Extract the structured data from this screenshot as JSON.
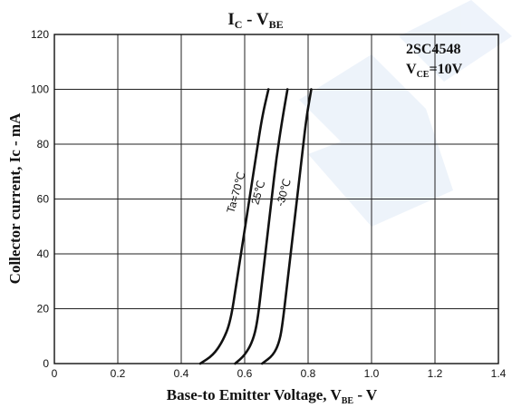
{
  "chart_data": {
    "type": "line",
    "title": {
      "main": "I",
      "main_sub": "C",
      "sep": " - V",
      "sep_sub": "BE"
    },
    "xlabel": {
      "before": "Base-to  Emitter Voltage, V",
      "sub": "BE",
      "after": " - V"
    },
    "ylabel": "Collector current, Ic - mA",
    "xlim": [
      0,
      1.4
    ],
    "ylim": [
      0,
      120
    ],
    "xticks": [
      "0",
      "0.2",
      "0.4",
      "0.6",
      "0.8",
      "1.0",
      "1.2",
      "1.4"
    ],
    "yticks": [
      "0",
      "20",
      "40",
      "60",
      "80",
      "100",
      "120"
    ],
    "grid": true,
    "annotation": {
      "part": "2SC4548",
      "cond_pre": "V",
      "cond_sub": "CE",
      "cond_post": "=10V"
    },
    "series": [
      {
        "name": "Ta=70℃",
        "points": [
          [
            0.46,
            0
          ],
          [
            0.5,
            3
          ],
          [
            0.53,
            8
          ],
          [
            0.555,
            15
          ],
          [
            0.575,
            30
          ],
          [
            0.595,
            45
          ],
          [
            0.615,
            60
          ],
          [
            0.635,
            75
          ],
          [
            0.655,
            90
          ],
          [
            0.675,
            100
          ]
        ]
      },
      {
        "name": "25℃",
        "points": [
          [
            0.57,
            0
          ],
          [
            0.6,
            3
          ],
          [
            0.625,
            8
          ],
          [
            0.64,
            15
          ],
          [
            0.655,
            30
          ],
          [
            0.67,
            45
          ],
          [
            0.685,
            60
          ],
          [
            0.7,
            75
          ],
          [
            0.72,
            90
          ],
          [
            0.735,
            100
          ]
        ]
      },
      {
        "name": "-30℃",
        "points": [
          [
            0.655,
            0
          ],
          [
            0.69,
            3
          ],
          [
            0.71,
            8
          ],
          [
            0.72,
            15
          ],
          [
            0.735,
            30
          ],
          [
            0.75,
            45
          ],
          [
            0.765,
            60
          ],
          [
            0.78,
            75
          ],
          [
            0.795,
            90
          ],
          [
            0.81,
            100
          ]
        ]
      }
    ]
  }
}
